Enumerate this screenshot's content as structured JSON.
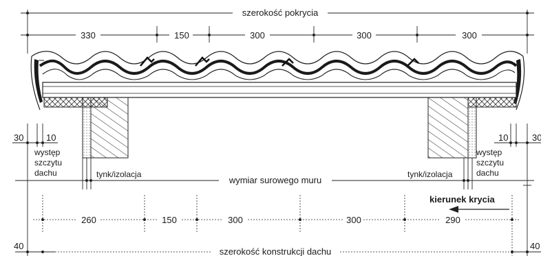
{
  "top": {
    "overall_label": "szerokość pokrycia",
    "segments": [
      "330",
      "150",
      "300",
      "300",
      "300"
    ]
  },
  "left": {
    "dim_30": "30",
    "dim_10": "10",
    "overhang_lines": [
      "występ",
      "szczytu",
      "dachu"
    ],
    "plaster_label": "tynk/izolacja"
  },
  "right": {
    "dim_10": "10",
    "dim_30": "30",
    "overhang_lines": [
      "występ",
      "szczytu",
      "dachu"
    ],
    "plaster_label": "tynk/izolacja"
  },
  "middle": {
    "wall_label": "wymiar surowego muru"
  },
  "bottom": {
    "direction_label": "kierunek krycia",
    "segments": [
      "260",
      "150",
      "300",
      "300",
      "290"
    ],
    "left_40": "40",
    "right_40": "40",
    "overall_label": "szerokość konstrukcji dachu"
  }
}
